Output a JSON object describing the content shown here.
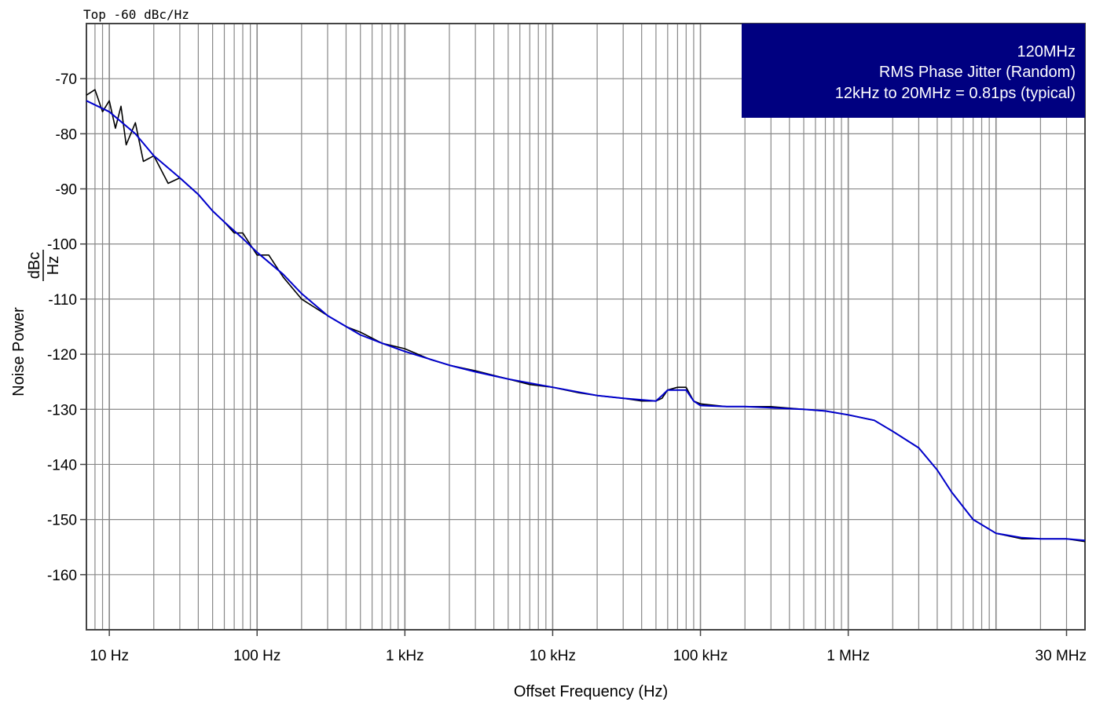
{
  "chart_data": {
    "type": "line",
    "top_label": "Top -60 dBc/Hz",
    "xlabel": "Offset Frequency (Hz)",
    "ylabel": "Noise Power",
    "ylabel_unit_numerator": "dBc",
    "ylabel_unit_denominator": "Hz",
    "x_scale": "log",
    "xlim": [
      7,
      40000000
    ],
    "ylim": [
      -170,
      -60
    ],
    "x_ticks": [
      {
        "value": 10,
        "label": "10 Hz"
      },
      {
        "value": 100,
        "label": "100 Hz"
      },
      {
        "value": 1000,
        "label": "1 kHz"
      },
      {
        "value": 10000,
        "label": "10 kHz"
      },
      {
        "value": 100000,
        "label": "100 kHz"
      },
      {
        "value": 1000000,
        "label": "1 MHz"
      },
      {
        "value": 30000000,
        "label": "30 MHz"
      }
    ],
    "y_ticks": [
      {
        "value": -70,
        "label": "-70"
      },
      {
        "value": -80,
        "label": "-80"
      },
      {
        "value": -90,
        "label": "-90"
      },
      {
        "value": -100,
        "label": "-100"
      },
      {
        "value": -110,
        "label": "-110"
      },
      {
        "value": -120,
        "label": "-120"
      },
      {
        "value": -130,
        "label": "-130"
      },
      {
        "value": -140,
        "label": "-140"
      },
      {
        "value": -150,
        "label": "-150"
      },
      {
        "value": -160,
        "label": "-160"
      }
    ],
    "grid": true,
    "annotation": {
      "lines": [
        "120MHz",
        "RMS Phase Jitter (Random)",
        "12kHz to 20MHz = 0.81ps (typical)"
      ],
      "position": "top-right",
      "background": "#000080",
      "text_color": "#ffffff"
    },
    "series": [
      {
        "color": "#000000",
        "x": [
          7,
          8,
          9,
          10,
          11,
          12,
          13,
          15,
          17,
          20,
          25,
          30,
          40,
          50,
          60,
          70,
          80,
          100,
          120,
          150,
          200,
          300,
          400,
          500,
          700,
          1000,
          1500,
          2000,
          3000,
          5000,
          7000,
          10000,
          15000,
          20000,
          30000,
          40000,
          50000,
          55000,
          60000,
          70000,
          80000,
          90000,
          100000,
          150000,
          200000,
          300000,
          500000,
          700000,
          1000000,
          1500000,
          2000000,
          3000000,
          4000000,
          5000000,
          7000000,
          10000000,
          15000000,
          20000000,
          30000000,
          40000000
        ],
        "y": [
          -73,
          -72,
          -76,
          -74,
          -79,
          -75,
          -82,
          -78,
          -85,
          -84,
          -89,
          -88,
          -91,
          -94,
          -96,
          -98,
          -98,
          -102,
          -102,
          -106,
          -110,
          -113,
          -115,
          -116,
          -118,
          -119,
          -121,
          -122,
          -123,
          -124.5,
          -125.5,
          -126,
          -127,
          -127.5,
          -128,
          -128.5,
          -128.5,
          -128,
          -126.5,
          -126,
          -126,
          -128.5,
          -129,
          -129.5,
          -129.5,
          -129.5,
          -130,
          -130.3,
          -131,
          -132,
          -134,
          -137,
          -141,
          -145,
          -150,
          -152.5,
          -153.5,
          -153.5,
          -153.5,
          -154
        ]
      },
      {
        "color": "#0000cc",
        "x": [
          7,
          10,
          15,
          20,
          30,
          40,
          50,
          60,
          80,
          100,
          150,
          200,
          300,
          500,
          700,
          1000,
          2000,
          3000,
          5000,
          10000,
          20000,
          30000,
          50000,
          55000,
          60000,
          70000,
          80000,
          90000,
          100000,
          150000,
          200000,
          300000,
          500000,
          700000,
          1000000,
          1500000,
          2000000,
          3000000,
          4000000,
          5000000,
          7000000,
          10000000,
          15000000,
          20000000,
          30000000,
          40000000
        ],
        "y": [
          -74,
          -76,
          -80,
          -84,
          -88,
          -91,
          -94,
          -96,
          -99,
          -101.5,
          -105.5,
          -109,
          -113,
          -116.5,
          -118,
          -119.5,
          -122,
          -123.2,
          -124.5,
          -126,
          -127.5,
          -128,
          -128.5,
          -127.5,
          -126.5,
          -126.5,
          -126.5,
          -128.5,
          -129.3,
          -129.5,
          -129.5,
          -129.7,
          -130,
          -130.3,
          -131,
          -132,
          -134,
          -137,
          -141,
          -145,
          -150,
          -152.5,
          -153.3,
          -153.5,
          -153.5,
          -153.8
        ]
      }
    ]
  }
}
